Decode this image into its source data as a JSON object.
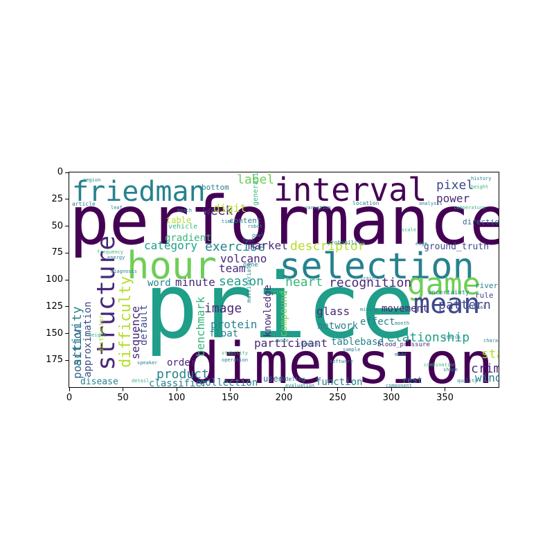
{
  "x_ticks": [
    "0",
    "50",
    "100",
    "150",
    "200",
    "250",
    "300",
    "350"
  ],
  "y_ticks": [
    "0",
    "25",
    "50",
    "75",
    "100",
    "125",
    "150",
    "175"
  ],
  "palette": {
    "dark_purple": "#440154",
    "purple": "#482878",
    "indigo": "#3e4989",
    "blue": "#31688e",
    "teal": "#26828e",
    "green_teal": "#1f9e89",
    "green": "#35b779",
    "lime": "#6ece58",
    "yellow_green": "#b5de2b",
    "yellow": "#fde725"
  },
  "words": [
    {
      "text": "performance",
      "color": "dark_purple"
    },
    {
      "text": "price",
      "color": "green_teal"
    },
    {
      "text": "dimension",
      "color": "dark_purple"
    },
    {
      "text": "interval",
      "color": "dark_purple"
    },
    {
      "text": "selection",
      "color": "teal"
    },
    {
      "text": "hour",
      "color": "lime"
    },
    {
      "text": "friedman",
      "color": "teal"
    },
    {
      "text": "structure",
      "color": "purple"
    },
    {
      "text": "game",
      "color": "lime"
    },
    {
      "text": "mean",
      "color": "indigo"
    },
    {
      "text": "relationship",
      "color": "green_teal"
    },
    {
      "text": "difficulty",
      "color": "yellow_green"
    },
    {
      "text": "benchmark",
      "color": "green"
    },
    {
      "text": "activity",
      "color": "teal"
    },
    {
      "text": "position",
      "color": "blue"
    },
    {
      "text": "approximation",
      "color": "indigo"
    },
    {
      "text": "sequence",
      "color": "purple"
    },
    {
      "text": "default",
      "color": "indigo"
    },
    {
      "text": "week",
      "color": "purple"
    },
    {
      "text": "label",
      "color": "lime"
    },
    {
      "text": "digit",
      "color": "yellow_green"
    },
    {
      "text": "pixel",
      "color": "indigo"
    },
    {
      "text": "power",
      "color": "purple"
    },
    {
      "text": "category",
      "color": "green_teal"
    },
    {
      "text": "exercise",
      "color": "teal"
    },
    {
      "text": "market",
      "color": "purple"
    },
    {
      "text": "descriptor",
      "color": "yellow_green"
    },
    {
      "text": "volcano",
      "color": "purple"
    },
    {
      "text": "team",
      "color": "purple"
    },
    {
      "text": "season",
      "color": "green_teal"
    },
    {
      "text": "heart",
      "color": "green"
    },
    {
      "text": "recognition",
      "color": "purple"
    },
    {
      "text": "minute",
      "color": "purple"
    },
    {
      "text": "word",
      "color": "teal"
    },
    {
      "text": "image",
      "color": "purple"
    },
    {
      "text": "protein",
      "color": "teal"
    },
    {
      "text": "float",
      "color": "teal"
    },
    {
      "text": "compound",
      "color": "lime"
    },
    {
      "text": "knowledge",
      "color": "purple"
    },
    {
      "text": "glass",
      "color": "purple"
    },
    {
      "text": "network",
      "color": "teal"
    },
    {
      "text": "effect",
      "color": "teal"
    },
    {
      "text": "pattern",
      "color": "indigo"
    },
    {
      "text": "movement",
      "color": "purple"
    },
    {
      "text": "participant",
      "color": "purple"
    },
    {
      "text": "tablebase",
      "color": "teal"
    },
    {
      "text": "start",
      "color": "yellow_green"
    },
    {
      "text": "crime",
      "color": "purple"
    },
    {
      "text": "window",
      "color": "teal"
    },
    {
      "text": "product",
      "color": "teal"
    },
    {
      "text": "classifier",
      "color": "teal"
    },
    {
      "text": "collection",
      "color": "teal"
    },
    {
      "text": "disease",
      "color": "teal"
    },
    {
      "text": "user",
      "color": "blue"
    },
    {
      "text": "function",
      "color": "teal"
    },
    {
      "text": "rest",
      "color": "teal"
    },
    {
      "text": "order",
      "color": "purple"
    },
    {
      "text": "gradient",
      "color": "green"
    },
    {
      "text": "table",
      "color": "yellow_green"
    },
    {
      "text": "vehicle",
      "color": "green"
    },
    {
      "text": "bottom",
      "color": "teal"
    },
    {
      "text": "content",
      "color": "teal"
    },
    {
      "text": "direction",
      "color": "blue"
    },
    {
      "text": "river",
      "color": "teal"
    },
    {
      "text": "rule",
      "color": "indigo"
    },
    {
      "text": "ground_truth",
      "color": "indigo"
    },
    {
      "text": "distractor",
      "color": "yellow_green"
    },
    {
      "text": "article",
      "color": "teal"
    },
    {
      "text": "gene",
      "color": "teal"
    },
    {
      "text": "generation",
      "color": "green"
    },
    {
      "text": "uncertainty",
      "color": "teal"
    },
    {
      "text": "blood_pressure",
      "color": "purple"
    },
    {
      "text": "multivariate",
      "color": "teal"
    },
    {
      "text": "modeling",
      "color": "teal"
    },
    {
      "text": "location",
      "color": "teal"
    },
    {
      "text": "probability",
      "color": "teal"
    },
    {
      "text": "signal",
      "color": "indigo"
    },
    {
      "text": "history",
      "color": "teal"
    },
    {
      "text": "height",
      "color": "green"
    },
    {
      "text": "region",
      "color": "teal"
    },
    {
      "text": "robot",
      "color": "teal"
    },
    {
      "text": "goal",
      "color": "teal"
    },
    {
      "text": "time",
      "color": "teal"
    },
    {
      "text": "energy",
      "color": "teal"
    },
    {
      "text": "frequency",
      "color": "green"
    },
    {
      "text": "stability",
      "color": "green"
    },
    {
      "text": "operation",
      "color": "teal"
    },
    {
      "text": "speaker",
      "color": "teal"
    },
    {
      "text": "weight",
      "color": "green"
    },
    {
      "text": "detail",
      "color": "green"
    },
    {
      "text": "quality",
      "color": "teal"
    },
    {
      "text": "shape",
      "color": "teal"
    },
    {
      "text": "character",
      "color": "teal"
    },
    {
      "text": "component",
      "color": "teal"
    },
    {
      "text": "combination",
      "color": "green"
    },
    {
      "text": "software",
      "color": "teal"
    },
    {
      "text": "chemical",
      "color": "teal"
    },
    {
      "text": "mining",
      "color": "teal"
    },
    {
      "text": "month",
      "color": "teal"
    },
    {
      "text": "scale",
      "color": "green"
    },
    {
      "text": "analysis",
      "color": "teal"
    },
    {
      "text": "diagnosis",
      "color": "teal"
    },
    {
      "text": "leaf",
      "color": "teal"
    },
    {
      "text": "beach",
      "color": "teal"
    },
    {
      "text": "sample",
      "color": "teal"
    },
    {
      "text": "evaluation",
      "color": "teal"
    },
    {
      "text": "node",
      "color": "teal"
    },
    {
      "text": "entity",
      "color": "green"
    },
    {
      "text": "temperature",
      "color": "green"
    },
    {
      "text": "variation",
      "color": "teal"
    },
    {
      "text": "mode",
      "color": "teal"
    },
    {
      "text": "status",
      "color": "teal"
    },
    {
      "text": "edge",
      "color": "teal"
    },
    {
      "text": "train",
      "color": "teal"
    },
    {
      "text": "tool",
      "color": "teal"
    }
  ]
}
